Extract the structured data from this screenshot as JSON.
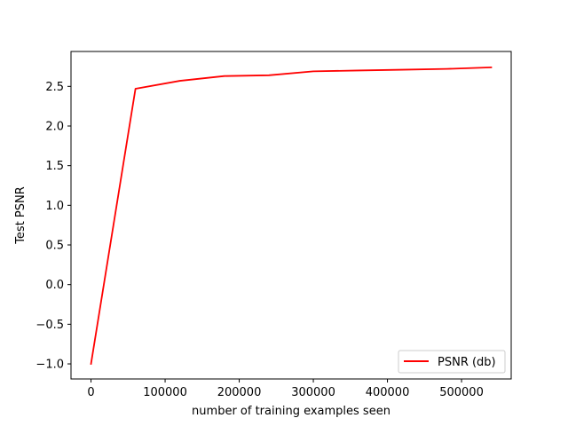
{
  "chart_data": {
    "type": "line",
    "title": "",
    "xlabel": "number of training examples seen",
    "ylabel": "Test PSNR",
    "xlim": [
      -27000,
      567000
    ],
    "ylim": [
      -1.19,
      2.94
    ],
    "x_ticks": [
      0,
      100000,
      200000,
      300000,
      400000,
      500000
    ],
    "x_tick_labels": [
      "0",
      "100000",
      "200000",
      "300000",
      "400000",
      "500000"
    ],
    "y_ticks": [
      -1.0,
      -0.5,
      0.0,
      0.5,
      1.0,
      1.5,
      2.0,
      2.5
    ],
    "y_tick_labels": [
      "−1.0",
      "−0.5",
      "0.0",
      "0.5",
      "1.0",
      "1.5",
      "2.0",
      "2.5"
    ],
    "grid": false,
    "legend": {
      "position": "lower-right"
    },
    "series": [
      {
        "name": "PSNR (db)",
        "color": "#ff0000",
        "x": [
          0,
          60000,
          120000,
          180000,
          240000,
          300000,
          360000,
          420000,
          480000,
          540000
        ],
        "y": [
          -1.0,
          2.47,
          2.57,
          2.63,
          2.64,
          2.69,
          2.7,
          2.71,
          2.72,
          2.74
        ]
      }
    ]
  }
}
